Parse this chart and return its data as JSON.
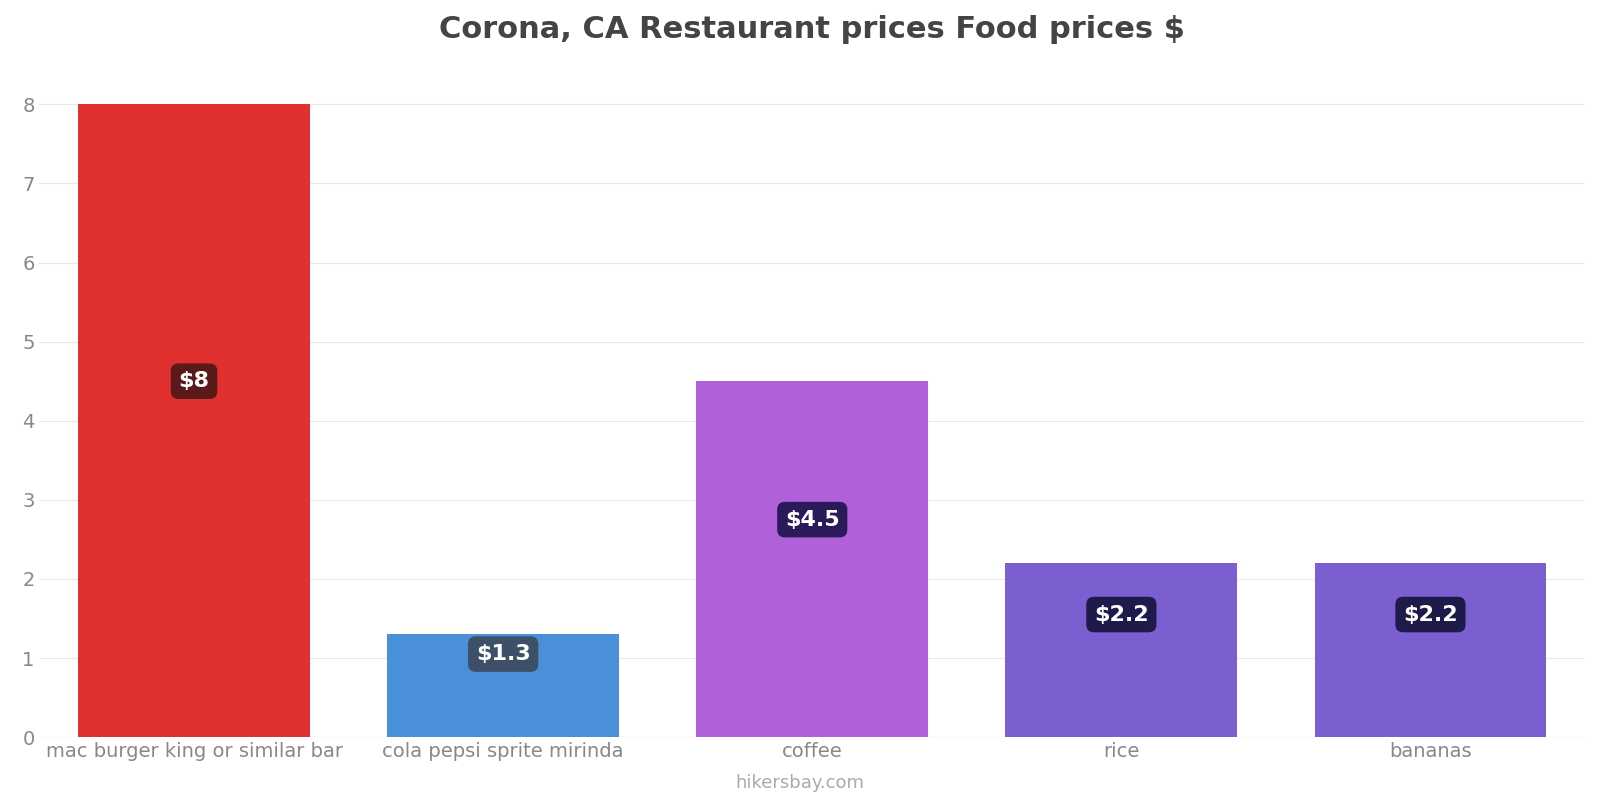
{
  "title": "Corona, CA Restaurant prices Food prices $",
  "categories": [
    "mac burger king or similar bar",
    "cola pepsi sprite mirinda",
    "coffee",
    "rice",
    "bananas"
  ],
  "values": [
    8.0,
    1.3,
    4.5,
    2.2,
    2.2
  ],
  "bar_colors": [
    "#e03030",
    "#4a90d9",
    "#b060d8",
    "#7b5fd0",
    "#7b5fd0"
  ],
  "label_texts": [
    "$8",
    "$1.3",
    "$4.5",
    "$2.2",
    "$2.2"
  ],
  "label_bg_colors": [
    "#5a1a1a",
    "#3d5068",
    "#2a1a5a",
    "#1e1a4a",
    "#1e1a4a"
  ],
  "label_y_positions": [
    4.5,
    1.05,
    2.75,
    1.55,
    1.55
  ],
  "ylim": [
    0,
    8.4
  ],
  "yticks": [
    0,
    1,
    2,
    3,
    4,
    5,
    6,
    7,
    8
  ],
  "title_fontsize": 22,
  "tick_fontsize": 14,
  "label_fontsize": 16,
  "watermark": "hikersbay.com",
  "background_color": "#ffffff",
  "grid_color": "#e8e8e8"
}
